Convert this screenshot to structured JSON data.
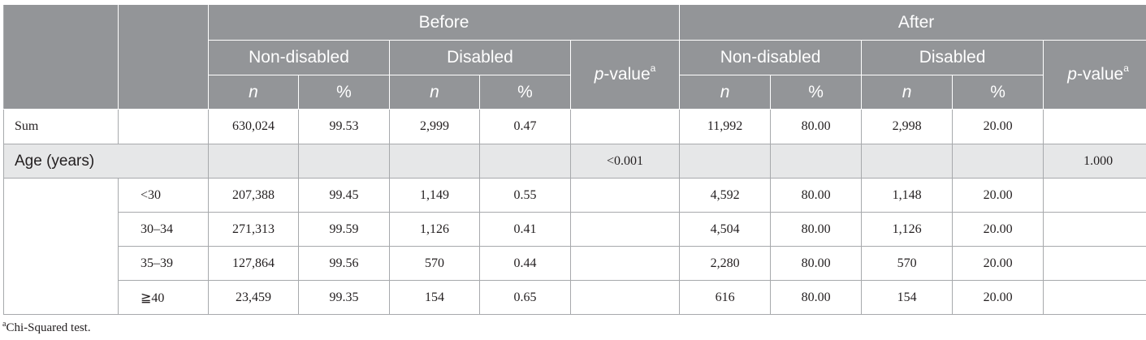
{
  "header": {
    "before": "Before",
    "after": "After",
    "non_disabled": "Non-disabled",
    "disabled": "Disabled",
    "n": "n",
    "pct": "%",
    "p_value_italic": "p",
    "p_value_rest": "-value",
    "p_value_sup": "a"
  },
  "rows": {
    "sum": {
      "label": "Sum",
      "before": [
        "630,024",
        "99.53",
        "2,999",
        "0.47",
        ""
      ],
      "after": [
        "11,992",
        "80.00",
        "2,998",
        "20.00",
        ""
      ]
    },
    "age_section": {
      "label": "Age (years)",
      "before_p": "<0.001",
      "after_p": "1.000"
    },
    "age": [
      {
        "label": "<30",
        "before": [
          "207,388",
          "99.45",
          "1,149",
          "0.55"
        ],
        "after": [
          "4,592",
          "80.00",
          "1,148",
          "20.00"
        ]
      },
      {
        "label": "30–34",
        "before": [
          "271,313",
          "99.59",
          "1,126",
          "0.41"
        ],
        "after": [
          "4,504",
          "80.00",
          "1,126",
          "20.00"
        ]
      },
      {
        "label": "35–39",
        "before": [
          "127,864",
          "99.56",
          "570",
          "0.44"
        ],
        "after": [
          "2,280",
          "80.00",
          "570",
          "20.00"
        ]
      },
      {
        "label": "≧40",
        "before": [
          "23,459",
          "99.35",
          "154",
          "0.65"
        ],
        "after": [
          "616",
          "80.00",
          "154",
          "20.00"
        ]
      }
    ]
  },
  "footnote": {
    "sup": "a",
    "text": "Chi-Squared test."
  },
  "colors": {
    "header_bg": "#939598",
    "section_bg": "#e6e7e8",
    "border": "#a7a9ac"
  }
}
